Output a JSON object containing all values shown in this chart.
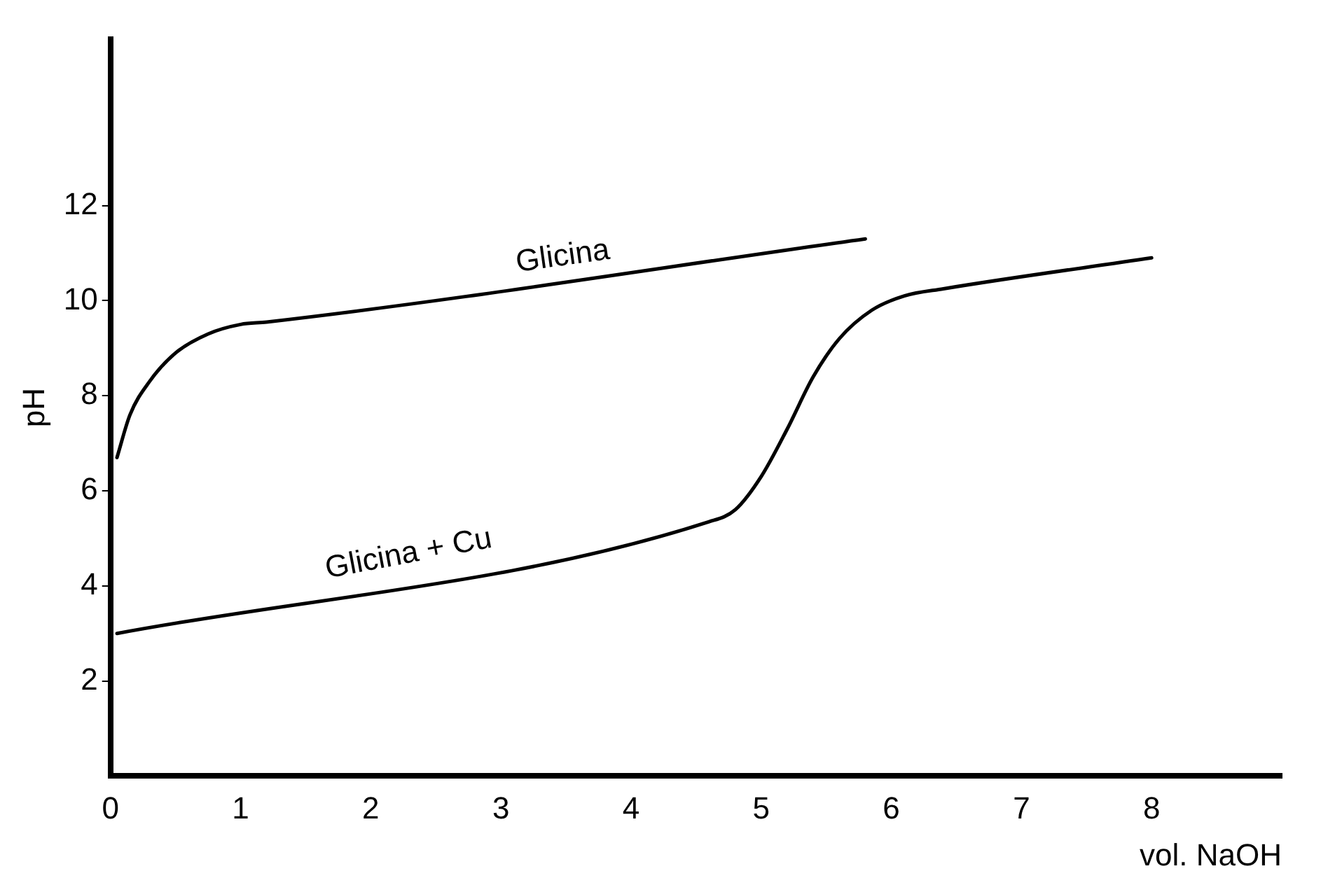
{
  "chart_data": {
    "type": "line",
    "xlabel": "vol. NaOH",
    "ylabel": "pH",
    "xlim": [
      0,
      9
    ],
    "ylim": [
      0,
      15.5
    ],
    "xticks": [
      0,
      1,
      2,
      3,
      4,
      5,
      6,
      7,
      8
    ],
    "yticks": [
      2,
      4,
      6,
      8,
      10,
      12
    ],
    "grid": false,
    "legend": false,
    "marker": "none",
    "line_style": "solid",
    "series": [
      {
        "name": "Glicina",
        "color": "#000000",
        "x": [
          0.05,
          0.15,
          0.3,
          0.5,
          0.75,
          1,
          1.2,
          5.8
        ],
        "values": [
          6.7,
          7.6,
          8.3,
          8.9,
          9.3,
          9.5,
          9.55,
          11.3
        ]
      },
      {
        "name": "Glicina + Cu",
        "color": "#000000",
        "x": [
          0.05,
          4.6,
          4.8,
          5,
          5.2,
          5.4,
          5.6,
          5.85,
          6.1,
          6.4,
          8
        ],
        "values": [
          3,
          5.35,
          5.6,
          6.3,
          7.3,
          8.4,
          9.2,
          9.8,
          10.1,
          10.25,
          10.9
        ]
      }
    ]
  }
}
